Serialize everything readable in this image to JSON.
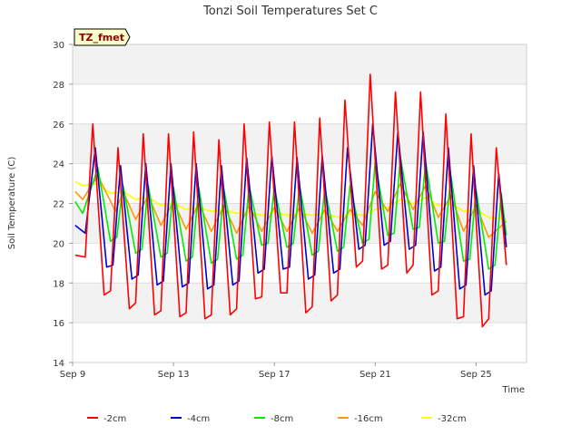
{
  "chart_data": {
    "type": "line",
    "title": "Tonzi Soil Temperatures Set C",
    "xlabel": "Time",
    "ylabel": "Soil Temperature (C)",
    "ylim": [
      14,
      30
    ],
    "xlim": [
      0,
      18
    ],
    "y_ticks": [
      14,
      16,
      18,
      20,
      22,
      24,
      26,
      28,
      30
    ],
    "x_ticks": [
      {
        "day": 0,
        "label": "Sep 9"
      },
      {
        "day": 4,
        "label": "Sep 13"
      },
      {
        "day": 8,
        "label": "Sep 17"
      },
      {
        "day": 12,
        "label": "Sep 21"
      },
      {
        "day": 16,
        "label": "Sep 25"
      }
    ],
    "grid": "horizontal, alternating light gray bands",
    "legend_position": "bottom",
    "annotation": "TZ_fmet",
    "x_unit": "days since Sep 9",
    "series": [
      {
        "name": "-2cm",
        "color": "#ff0000",
        "x": [
          0.1,
          0.5,
          0.8,
          1.25,
          1.5,
          1.8,
          2.25,
          2.5,
          2.8,
          3.25,
          3.5,
          3.8,
          4.25,
          4.5,
          4.8,
          5.25,
          5.5,
          5.8,
          6.25,
          6.5,
          6.8,
          7.25,
          7.5,
          7.8,
          8.25,
          8.5,
          8.8,
          9.25,
          9.5,
          9.8,
          10.25,
          10.5,
          10.8,
          11.25,
          11.5,
          11.8,
          12.25,
          12.5,
          12.8,
          13.25,
          13.5,
          13.8,
          14.25,
          14.5,
          14.8,
          15.25,
          15.5,
          15.8,
          16.25,
          16.5,
          16.8,
          17.2
        ],
        "y": [
          19.4,
          19.3,
          26.0,
          17.4,
          17.6,
          24.8,
          16.7,
          17.0,
          25.5,
          16.4,
          16.6,
          25.5,
          16.3,
          16.5,
          25.6,
          16.2,
          16.4,
          25.2,
          16.4,
          16.7,
          26.0,
          17.2,
          17.3,
          26.1,
          17.5,
          17.5,
          26.1,
          16.5,
          16.8,
          26.3,
          17.1,
          17.4,
          27.2,
          18.8,
          19.1,
          28.5,
          18.7,
          18.9,
          27.6,
          18.5,
          18.9,
          27.6,
          17.4,
          17.6,
          26.5,
          16.2,
          16.3,
          25.5,
          15.8,
          16.2,
          24.8,
          18.9
        ]
      },
      {
        "name": "-4cm",
        "color": "#0000cc",
        "x": [
          0.1,
          0.5,
          0.9,
          1.35,
          1.6,
          1.9,
          2.35,
          2.6,
          2.9,
          3.35,
          3.6,
          3.9,
          4.35,
          4.6,
          4.9,
          5.35,
          5.6,
          5.9,
          6.35,
          6.6,
          6.9,
          7.35,
          7.6,
          7.9,
          8.35,
          8.6,
          8.9,
          9.35,
          9.6,
          9.9,
          10.35,
          10.6,
          10.9,
          11.35,
          11.6,
          11.9,
          12.35,
          12.6,
          12.9,
          13.35,
          13.6,
          13.9,
          14.35,
          14.6,
          14.9,
          15.35,
          15.6,
          15.9,
          16.35,
          16.6,
          16.9,
          17.2
        ],
        "y": [
          20.9,
          20.5,
          24.8,
          18.8,
          18.9,
          23.9,
          18.2,
          18.4,
          24.0,
          17.9,
          18.1,
          24.0,
          17.8,
          18.0,
          24.0,
          17.7,
          17.9,
          23.9,
          17.9,
          18.1,
          24.3,
          18.5,
          18.7,
          24.4,
          18.7,
          18.8,
          24.3,
          18.2,
          18.4,
          24.4,
          18.5,
          18.7,
          24.8,
          19.7,
          19.9,
          26.0,
          19.9,
          20.1,
          25.6,
          19.7,
          19.9,
          25.6,
          18.6,
          18.8,
          24.8,
          17.7,
          17.9,
          23.9,
          17.4,
          17.6,
          23.5,
          19.8
        ]
      },
      {
        "name": "-8cm",
        "color": "#00ee00",
        "x": [
          0.1,
          0.4,
          1.0,
          1.5,
          1.75,
          2.0,
          2.5,
          2.75,
          3.0,
          3.5,
          3.75,
          4.0,
          4.5,
          4.75,
          5.0,
          5.5,
          5.75,
          6.0,
          6.5,
          6.75,
          7.0,
          7.5,
          7.75,
          8.0,
          8.5,
          8.75,
          9.0,
          9.5,
          9.75,
          10.0,
          10.5,
          10.75,
          11.0,
          11.5,
          11.75,
          12.0,
          12.5,
          12.75,
          13.0,
          13.5,
          13.75,
          14.0,
          14.5,
          14.75,
          15.0,
          15.5,
          15.75,
          16.0,
          16.5,
          16.75,
          17.0,
          17.2
        ],
        "y": [
          22.1,
          21.5,
          23.8,
          20.1,
          20.3,
          22.9,
          19.5,
          19.7,
          22.9,
          19.3,
          19.5,
          22.8,
          19.1,
          19.3,
          22.8,
          19.0,
          19.2,
          22.7,
          19.2,
          19.4,
          22.9,
          19.9,
          20.0,
          22.8,
          19.8,
          20.0,
          22.9,
          19.4,
          19.6,
          22.8,
          19.6,
          19.8,
          22.9,
          20.0,
          20.2,
          24.1,
          20.4,
          20.5,
          24.3,
          20.7,
          20.8,
          24.1,
          20.0,
          20.1,
          23.4,
          19.1,
          19.2,
          22.7,
          18.7,
          18.9,
          22.5,
          20.4
        ]
      },
      {
        "name": "-16cm",
        "color": "#ff9900",
        "x": [
          0.1,
          0.4,
          1.0,
          1.7,
          2.0,
          2.5,
          3.0,
          3.5,
          4.0,
          4.5,
          5.0,
          5.5,
          6.0,
          6.5,
          7.0,
          7.5,
          8.0,
          8.5,
          9.0,
          9.5,
          10.0,
          10.5,
          11.0,
          11.5,
          12.0,
          12.5,
          13.0,
          13.5,
          14.0,
          14.5,
          15.0,
          15.5,
          16.0,
          16.5,
          17.2
        ],
        "y": [
          22.6,
          22.2,
          23.4,
          21.6,
          22.6,
          21.2,
          22.4,
          20.9,
          22.1,
          20.7,
          22.0,
          20.6,
          21.9,
          20.5,
          21.9,
          20.6,
          21.8,
          20.6,
          21.8,
          20.5,
          21.7,
          20.6,
          21.7,
          20.9,
          22.6,
          21.6,
          23.0,
          21.7,
          22.9,
          21.3,
          22.4,
          20.6,
          21.9,
          20.3,
          21.1
        ]
      },
      {
        "name": "-32cm",
        "color": "#ffff00",
        "x": [
          0.1,
          0.4,
          1.0,
          1.5,
          2.0,
          2.5,
          3.0,
          3.5,
          4.0,
          4.5,
          5.0,
          5.5,
          6.0,
          6.5,
          7.0,
          7.5,
          8.0,
          8.5,
          9.0,
          9.5,
          10.0,
          10.5,
          11.0,
          11.5,
          12.0,
          12.5,
          13.0,
          13.5,
          14.0,
          14.5,
          15.0,
          15.5,
          16.0,
          16.5,
          17.2
        ],
        "y": [
          23.1,
          22.9,
          23.0,
          22.5,
          22.6,
          22.2,
          22.3,
          21.9,
          22.0,
          21.7,
          21.8,
          21.6,
          21.7,
          21.5,
          21.6,
          21.4,
          21.6,
          21.4,
          21.5,
          21.4,
          21.5,
          21.3,
          21.5,
          21.4,
          21.7,
          21.8,
          22.2,
          22.0,
          22.3,
          21.9,
          22.0,
          21.6,
          21.7,
          21.3,
          21.2
        ]
      }
    ]
  }
}
